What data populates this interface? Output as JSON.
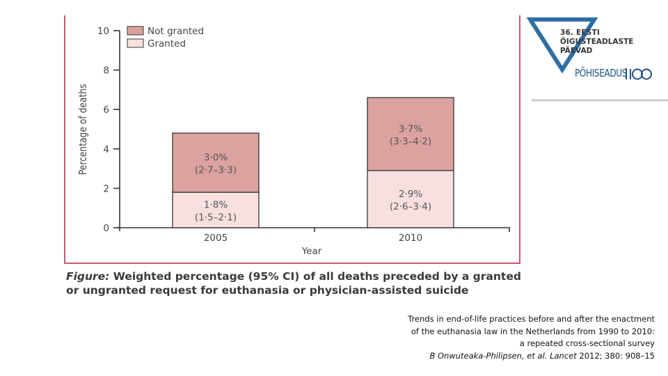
{
  "chart_data": {
    "type": "bar",
    "stacked": true,
    "categories": [
      "2005",
      "2010"
    ],
    "series": [
      {
        "name": "Granted",
        "values": [
          1.8,
          2.9
        ],
        "labels": [
          "1·8%",
          "2·9%"
        ],
        "ci_labels": [
          "(1·5–2·1)",
          "(2·6–3·4)"
        ]
      },
      {
        "name": "Not granted",
        "values": [
          3.0,
          3.7
        ],
        "labels": [
          "3·0%",
          "3·7%"
        ],
        "ci_labels": [
          "(2·7–3·3)",
          "(3·3–4·2)"
        ]
      }
    ],
    "xlabel": "Year",
    "ylabel": "Percentage of deaths",
    "ylim": [
      0,
      10
    ],
    "yticks": [
      "0",
      "2",
      "4",
      "6",
      "8",
      "10"
    ],
    "legend_position": "top-left",
    "colors": {
      "Not granted": "#dba29f",
      "Granted": "#f7e0df",
      "outline": "#333333"
    }
  },
  "caption": {
    "label": "Figure:",
    "text": "Weighted percentage (95% CI) of all deaths preceded by a granted or ungranted request for euthanasia or physician-assisted suicide"
  },
  "citation": {
    "line1": "Trends in end-of-life practices before and after the enactment",
    "line2": "of the euthanasia law in the Netherlands from 1990 to 2010:",
    "line3": "a repeated cross-sectional survey",
    "authors": "B Onwuteaka-Philipsen,  et al. Lancet",
    "ref": " 2012; 380: 908–15"
  },
  "logo": {
    "line1": "36. EESTI",
    "line2": "ÕIGUSTEADLASTE",
    "line3": "PÄEVAD",
    "brand": "PÕHISEADUS",
    "brand_suffix": "100",
    "colors": {
      "triangle": "#2d6fa5",
      "accent": "#6e8fb0",
      "text": "#1f4f86"
    }
  }
}
